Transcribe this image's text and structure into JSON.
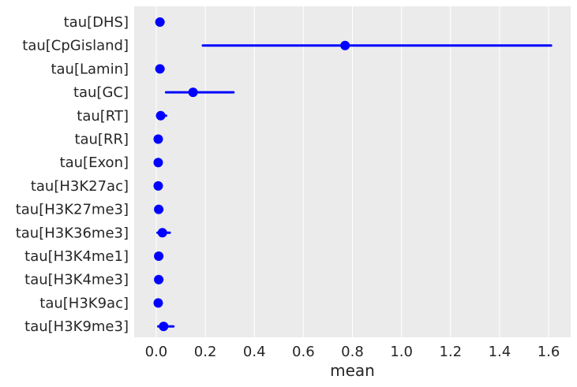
{
  "chart_data": {
    "type": "scatter",
    "title": "",
    "xlabel": "mean",
    "ylabel": "",
    "xlim": [
      -0.09,
      1.69
    ],
    "xticks": [
      0.0,
      0.2,
      0.4,
      0.6,
      0.8,
      1.0,
      1.2,
      1.4,
      1.6
    ],
    "xtick_labels": [
      "0.0",
      "0.2",
      "0.4",
      "0.6",
      "0.8",
      "1.0",
      "1.2",
      "1.4",
      "1.6"
    ],
    "grid": true,
    "background": "#ebebeb",
    "grid_color": "#ffffff",
    "marker_color": "#0000ff",
    "categories": [
      "tau[DHS]",
      "tau[CpGisland]",
      "tau[Lamin]",
      "tau[GC]",
      "tau[RT]",
      "tau[RR]",
      "tau[Exon]",
      "tau[H3K27ac]",
      "tau[H3K27me3]",
      "tau[H3K36me3]",
      "tau[H3K4me1]",
      "tau[H3K4me3]",
      "tau[H3K9ac]",
      "tau[H3K9me3]"
    ],
    "mean": [
      0.015,
      0.77,
      0.015,
      0.15,
      0.018,
      0.008,
      0.008,
      0.008,
      0.01,
      0.025,
      0.01,
      0.01,
      0.008,
      0.03
    ],
    "lower": [
      0.005,
      0.19,
      0.005,
      0.04,
      0.006,
      0.002,
      0.002,
      0.002,
      0.003,
      0.005,
      0.003,
      0.003,
      0.002,
      0.008
    ],
    "upper": [
      0.03,
      1.61,
      0.03,
      0.315,
      0.04,
      0.02,
      0.02,
      0.02,
      0.025,
      0.055,
      0.025,
      0.025,
      0.02,
      0.07
    ]
  }
}
